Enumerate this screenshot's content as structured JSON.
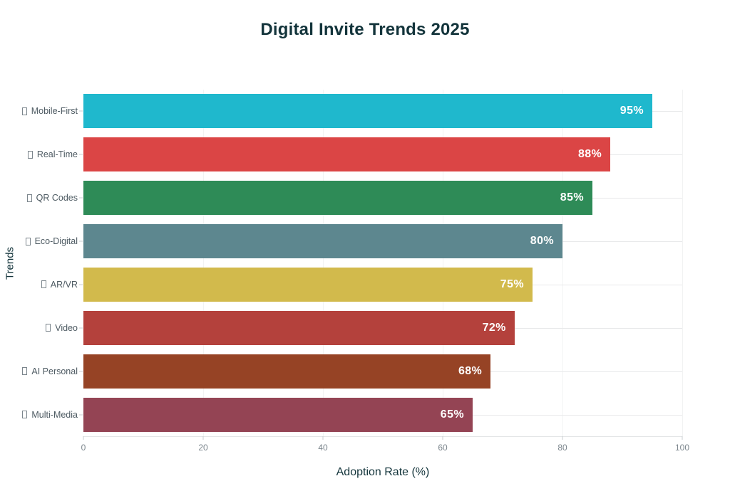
{
  "chart": {
    "title": "Digital Invite Trends 2025",
    "xlabel": "Adoption Rate (%)",
    "ylabel": "Trends"
  },
  "chart_data": {
    "type": "bar",
    "orientation": "horizontal",
    "title": "Digital Invite Trends 2025",
    "xlabel": "Adoption Rate (%)",
    "ylabel": "Trends",
    "categories": [
      "Mobile-First",
      "Real-Time",
      "QR Codes",
      "Eco-Digital",
      "AR/VR",
      "Video",
      "AI Personal",
      "Multi-Media"
    ],
    "values": [
      95,
      88,
      85,
      80,
      75,
      72,
      68,
      65
    ],
    "value_labels": [
      "95%",
      "88%",
      "85%",
      "80%",
      "75%",
      "72%",
      "68%",
      "65%"
    ],
    "bar_colors": [
      "#1FB8CD",
      "#DB4545",
      "#2E8B57",
      "#5D878F",
      "#D2BA4C",
      "#B4413C",
      "#964325",
      "#944454"
    ],
    "category_icon": "missing-emoji-glyph-box",
    "xlim": [
      0,
      100
    ],
    "x_ticks": [
      0,
      20,
      40,
      60,
      80,
      100
    ],
    "grid": "per-category horizontal lines ending at x=100, faint vertical lines at each x tick",
    "legend": "none",
    "value_label_position": "inside-right, white bold",
    "colors": {
      "title_text": "#13343B",
      "axis_title_text": "#13343B",
      "category_label_text": "#4d5a62",
      "tick_label_text": "#7c868d",
      "gridline": "#e8e9ea",
      "axis_line": "#e4e6e7",
      "background": "#ffffff"
    }
  }
}
